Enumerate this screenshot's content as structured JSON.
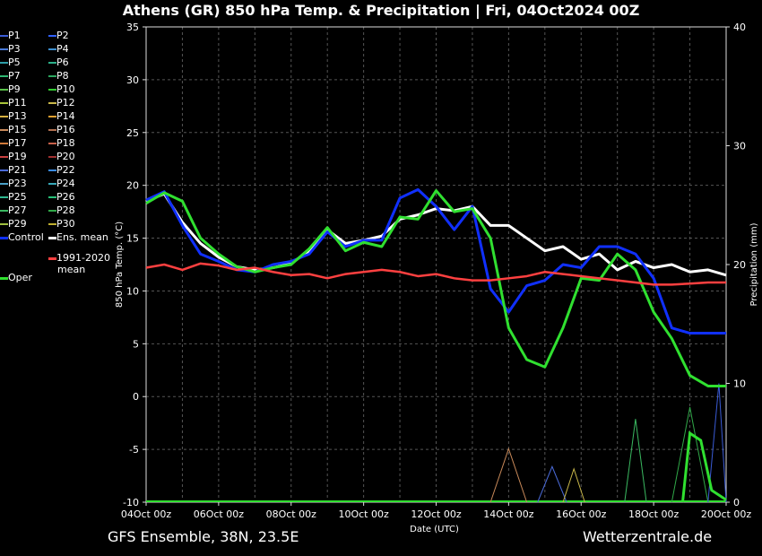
{
  "header": {
    "title": "Athens  (GR)  850 hPa Temp. & Precipitation | Fri, 04Oct2024 00Z"
  },
  "footer": {
    "left": "GFS Ensemble, 38N, 23.5E",
    "right": "Wetterzentrale.de"
  },
  "legend": {
    "items": [
      {
        "label": "P1",
        "color": "#3a5bd6"
      },
      {
        "label": "P2",
        "color": "#3060ff"
      },
      {
        "label": "P3",
        "color": "#4a7ad8"
      },
      {
        "label": "P4",
        "color": "#3d8fcf"
      },
      {
        "label": "P5",
        "color": "#2e9da8"
      },
      {
        "label": "P6",
        "color": "#2cb08a"
      },
      {
        "label": "P7",
        "color": "#2fb872"
      },
      {
        "label": "P8",
        "color": "#2da860"
      },
      {
        "label": "P9",
        "color": "#5ac24a"
      },
      {
        "label": "P10",
        "color": "#33cc33"
      },
      {
        "label": "P11",
        "color": "#a8c43a"
      },
      {
        "label": "P12",
        "color": "#c9b84a"
      },
      {
        "label": "P13",
        "color": "#d6b040"
      },
      {
        "label": "P14",
        "color": "#e0a030"
      },
      {
        "label": "P15",
        "color": "#c98a5a"
      },
      {
        "label": "P16",
        "color": "#b07050"
      },
      {
        "label": "P17",
        "color": "#d07a3a"
      },
      {
        "label": "P18",
        "color": "#c8604a"
      },
      {
        "label": "P19",
        "color": "#c84040"
      },
      {
        "label": "P20",
        "color": "#a03030"
      },
      {
        "label": "P21",
        "color": "#4a6ad8"
      },
      {
        "label": "P22",
        "color": "#3a8ae0"
      },
      {
        "label": "P23",
        "color": "#4aa0c8"
      },
      {
        "label": "P24",
        "color": "#38a8b8"
      },
      {
        "label": "P25",
        "color": "#30b890"
      },
      {
        "label": "P26",
        "color": "#28c078"
      },
      {
        "label": "P27",
        "color": "#3ab860"
      },
      {
        "label": "P28",
        "color": "#30a848"
      },
      {
        "label": "P29",
        "color": "#a0c040"
      },
      {
        "label": "P30",
        "color": "#c0b030"
      },
      {
        "label": "Control",
        "color": "#1030ff"
      },
      {
        "label": "Ens. mean",
        "color": "#ffffff"
      },
      {
        "label": "1991-2020",
        "color": "#ff4040"
      },
      {
        "label": "mean",
        "color": ""
      },
      {
        "label": "Oper",
        "color": "#30e030"
      }
    ]
  },
  "chart_data": {
    "type": "line",
    "xlabel": "Date (UTC)",
    "ylabel": "850 hPa Temp. (°C)",
    "y2label": "Precipitation (mm)",
    "ylim": [
      -10,
      35
    ],
    "y2lim": [
      0,
      40
    ],
    "xlim_days": [
      0,
      16
    ],
    "x_ticks": [
      "04Oct 00z",
      "06Oct 00z",
      "08Oct 00z",
      "10Oct 00z",
      "12Oct 00z",
      "14Oct 00z",
      "16Oct 00z",
      "18Oct 00z",
      "20Oct 00z"
    ],
    "y_ticks": [
      -10,
      -5,
      0,
      5,
      10,
      15,
      20,
      25,
      30,
      35
    ],
    "y2_ticks": [
      0,
      10,
      20,
      30,
      40
    ],
    "grid": true,
    "series": [
      {
        "name": "Ens. mean",
        "color": "#ffffff",
        "width": 3,
        "x": [
          0,
          0.5,
          1,
          1.5,
          2,
          2.5,
          3,
          3.5,
          4,
          4.5,
          5,
          5.5,
          6,
          6.5,
          7,
          7.5,
          8,
          8.5,
          9,
          9.5,
          10,
          10.5,
          11,
          11.5,
          12,
          12.5,
          13,
          13.5,
          14,
          14.5,
          15,
          15.5,
          16
        ],
        "y": [
          18.5,
          19.2,
          16.5,
          14.5,
          13.2,
          12.3,
          12.0,
          12.2,
          12.6,
          13.8,
          15.8,
          14.5,
          14.8,
          15.2,
          16.8,
          17.2,
          17.8,
          17.6,
          18.0,
          16.2,
          16.2,
          15.0,
          13.8,
          14.2,
          13.0,
          13.5,
          12.0,
          12.8,
          12.2,
          12.5,
          11.8,
          12.0,
          11.5
        ]
      },
      {
        "name": "Control",
        "color": "#1030ff",
        "width": 3,
        "x": [
          0,
          0.5,
          1,
          1.5,
          2,
          2.5,
          3,
          3.5,
          4,
          4.5,
          5,
          5.5,
          6,
          6.5,
          7,
          7.5,
          8,
          8.5,
          9,
          9.5,
          10,
          10.5,
          11,
          11.5,
          12,
          12.5,
          13,
          13.5,
          14,
          14.5,
          15,
          15.5,
          16
        ],
        "y": [
          18.6,
          19.4,
          16.2,
          13.5,
          12.8,
          12.0,
          11.8,
          12.5,
          12.8,
          13.5,
          15.6,
          14.2,
          14.8,
          14.8,
          18.8,
          19.6,
          18.0,
          15.8,
          18.0,
          10.2,
          8.0,
          10.5,
          11.0,
          12.5,
          12.2,
          14.2,
          14.2,
          13.5,
          11.2,
          6.5,
          6.0,
          6.0,
          6.0
        ]
      },
      {
        "name": "Oper",
        "color": "#30e030",
        "width": 3,
        "x": [
          0,
          0.5,
          1,
          1.5,
          2,
          2.5,
          3,
          3.5,
          4,
          4.5,
          5,
          5.5,
          6,
          6.5,
          7,
          7.5,
          8,
          8.5,
          9,
          9.5,
          10,
          10.5,
          11,
          11.5,
          12,
          12.5,
          13,
          13.5,
          14,
          14.5,
          15,
          15.5,
          16
        ],
        "y": [
          18.3,
          19.3,
          18.5,
          15.0,
          13.5,
          12.3,
          11.8,
          12.2,
          12.5,
          14.0,
          16.0,
          13.8,
          14.6,
          14.2,
          17.0,
          16.8,
          19.5,
          17.5,
          17.8,
          15.0,
          6.5,
          3.5,
          2.8,
          6.5,
          11.2,
          11.0,
          13.5,
          12.0,
          8.0,
          5.5,
          2.0,
          1.0,
          1.0
        ]
      },
      {
        "name": "1991-2020 mean",
        "color": "#ff4040",
        "width": 2.5,
        "x": [
          0,
          0.5,
          1,
          1.5,
          2,
          2.5,
          3,
          3.5,
          4,
          4.5,
          5,
          5.5,
          6,
          6.5,
          7,
          7.5,
          8,
          8.5,
          9,
          9.5,
          10,
          10.5,
          11,
          11.5,
          12,
          12.5,
          13,
          13.5,
          14,
          14.5,
          15,
          15.5,
          16
        ],
        "y": [
          12.2,
          12.5,
          12.0,
          12.6,
          12.4,
          12.0,
          12.2,
          11.8,
          11.5,
          11.6,
          11.2,
          11.6,
          11.8,
          12.0,
          11.8,
          11.4,
          11.6,
          11.2,
          11.0,
          11.0,
          11.2,
          11.4,
          11.8,
          11.6,
          11.4,
          11.2,
          11.0,
          10.8,
          10.6,
          10.6,
          10.7,
          10.8,
          10.8
        ]
      }
    ],
    "precip_series": [
      {
        "name": "P15",
        "color": "#c98a5a",
        "x": [
          9.5,
          10,
          10.5
        ],
        "y": [
          0,
          4.5,
          0
        ]
      },
      {
        "name": "P21",
        "color": "#4a6ad8",
        "x": [
          10.8,
          11.2,
          11.6
        ],
        "y": [
          0,
          3,
          0
        ]
      },
      {
        "name": "P12",
        "color": "#c9b84a",
        "x": [
          11.5,
          11.8,
          12.1
        ],
        "y": [
          0,
          2.8,
          0
        ]
      },
      {
        "name": "P27",
        "color": "#3ab860",
        "x": [
          13.2,
          13.5,
          13.8
        ],
        "y": [
          0,
          7,
          0
        ]
      },
      {
        "name": "P28",
        "color": "#30a848",
        "x": [
          14.5,
          15,
          15.5
        ],
        "y": [
          0,
          8,
          0
        ]
      },
      {
        "name": "P1",
        "color": "#3a5bd6",
        "x": [
          15.5,
          15.8,
          16
        ],
        "y": [
          0,
          10,
          0
        ]
      },
      {
        "name": "Oper",
        "color": "#30e030",
        "x": [
          14.8,
          15,
          15.3,
          15.6,
          16
        ],
        "y": [
          0,
          5.8,
          5.2,
          1,
          0.2
        ]
      }
    ]
  }
}
